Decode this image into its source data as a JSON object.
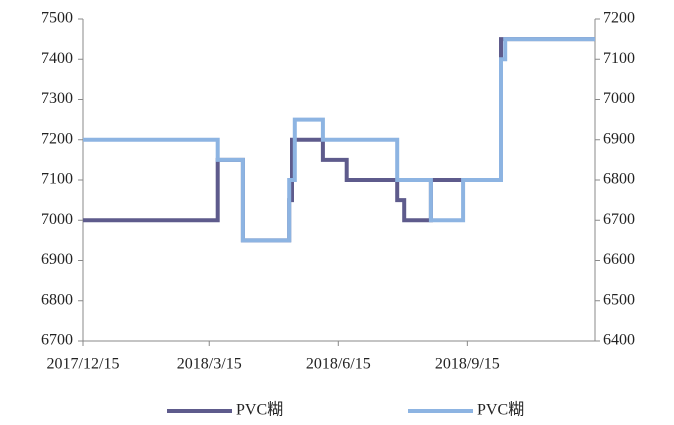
{
  "chart_data": {
    "type": "line",
    "xlim": [
      "2017-12-15",
      "2018-12-15"
    ],
    "xticks": [
      {
        "value": "2017-12-15",
        "label": "2017/12/15"
      },
      {
        "value": "2018-03-15",
        "label": "2018/3/15"
      },
      {
        "value": "2018-06-15",
        "label": "2018/6/15"
      },
      {
        "value": "2018-09-15",
        "label": "2018/9/15"
      }
    ],
    "ylim": [
      6700,
      7500
    ],
    "yticks": [
      6700,
      6800,
      6900,
      7000,
      7100,
      7200,
      7300,
      7400,
      7500
    ],
    "y2lim": [
      6400,
      7200
    ],
    "y2ticks": [
      6400,
      6500,
      6600,
      6700,
      6800,
      6900,
      7000,
      7100,
      7200
    ],
    "legend": "bottom",
    "series": [
      {
        "name": "PVC糊",
        "color": "#5e5b8c",
        "axis": "y",
        "x": [
          "2017-12-15",
          "2018-03-21",
          "2018-03-21",
          "2018-04-08",
          "2018-04-08",
          "2018-05-11",
          "2018-05-11",
          "2018-05-13",
          "2018-05-13",
          "2018-06-04",
          "2018-06-04",
          "2018-06-21",
          "2018-06-21",
          "2018-07-27",
          "2018-07-27",
          "2018-08-01",
          "2018-08-01",
          "2018-08-20",
          "2018-08-20",
          "2018-10-09",
          "2018-10-09",
          "2018-12-15"
        ],
        "values": [
          7000,
          7000,
          7150,
          7150,
          6950,
          6950,
          7050,
          7050,
          7200,
          7200,
          7150,
          7150,
          7100,
          7100,
          7050,
          7050,
          7000,
          7000,
          7100,
          7100,
          7450,
          7450
        ]
      },
      {
        "name": "PVC糊",
        "color": "#8db4e2",
        "axis": "y2",
        "x": [
          "2017-12-15",
          "2018-03-21",
          "2018-03-21",
          "2018-04-08",
          "2018-04-08",
          "2018-05-11",
          "2018-05-11",
          "2018-05-15",
          "2018-05-15",
          "2018-06-04",
          "2018-06-04",
          "2018-07-27",
          "2018-07-27",
          "2018-08-20",
          "2018-08-20",
          "2018-09-12",
          "2018-09-12",
          "2018-10-09",
          "2018-10-09",
          "2018-10-12",
          "2018-10-12",
          "2018-12-15"
        ],
        "values": [
          6900,
          6900,
          6850,
          6850,
          6650,
          6650,
          6800,
          6800,
          6950,
          6950,
          6900,
          6900,
          6800,
          6800,
          6700,
          6700,
          6800,
          6800,
          7100,
          7100,
          7150,
          7150
        ]
      }
    ]
  }
}
